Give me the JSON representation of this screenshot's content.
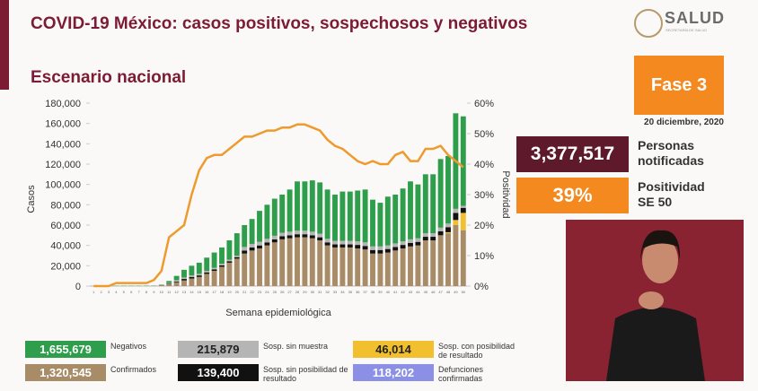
{
  "header": {
    "title": "COVID-19 México: casos positivos, sospechosos y negativos",
    "logo": "SALUD",
    "logo_sub": "SECRETARÍA DE SALUD"
  },
  "panel": {
    "phase": "Fase 3",
    "date": "20 diciembre, 2020",
    "notified": "3,377,517",
    "notified_label": "Personas notificadas",
    "positivity": "39%",
    "positivity_label": "Positividad SE 50"
  },
  "deaths": {
    "total": "118,202",
    "label": "Defunciones confirmadas",
    "color": "#8c8fe6"
  },
  "chart_data": {
    "type": "bar",
    "title": "Escenario nacional",
    "x_label": "Semana epidemiológica",
    "y_label": "Casos",
    "categories": [
      "1",
      "2",
      "3",
      "4",
      "5",
      "6",
      "7",
      "8",
      "9",
      "10",
      "11",
      "12",
      "13",
      "14",
      "15",
      "16",
      "17",
      "18",
      "19",
      "20",
      "21",
      "22",
      "23",
      "24",
      "25",
      "26",
      "27",
      "28",
      "29",
      "30",
      "31",
      "32",
      "33",
      "34",
      "35",
      "36",
      "37",
      "38",
      "39",
      "40",
      "41",
      "42",
      "43",
      "44",
      "45",
      "46",
      "47",
      "48",
      "49",
      "50"
    ],
    "ylim": [
      0,
      180000
    ],
    "yticks": [
      {
        "value": 0,
        "label": "0"
      },
      {
        "value": 20000,
        "label": "20,000"
      },
      {
        "value": 40000,
        "label": "40,000"
      },
      {
        "value": 60000,
        "label": "60,000"
      },
      {
        "value": 80000,
        "label": "80,000"
      },
      {
        "value": 100000,
        "label": "100,000"
      },
      {
        "value": 120000,
        "label": "120,000"
      },
      {
        "value": 140000,
        "label": "140,000"
      },
      {
        "value": 160000,
        "label": "160,000"
      },
      {
        "value": 180000,
        "label": "180,000"
      }
    ],
    "y2lim": [
      0,
      60
    ],
    "y2ticks": [
      {
        "value": 0,
        "label": "0%"
      },
      {
        "value": 10,
        "label": "10%"
      },
      {
        "value": 20,
        "label": "20%"
      },
      {
        "value": 30,
        "label": "30%"
      },
      {
        "value": 40,
        "label": "40%"
      },
      {
        "value": 50,
        "label": "50%"
      },
      {
        "value": 60,
        "label": "60%"
      }
    ],
    "series": [
      {
        "name": "Confirmados",
        "type": "bar",
        "color": "#a88c68",
        "total": "1,320,545",
        "values": [
          0,
          0,
          0,
          0,
          0,
          0,
          0,
          100,
          300,
          800,
          2000,
          3500,
          5500,
          7500,
          9000,
          12000,
          15000,
          19000,
          23000,
          27000,
          32000,
          35000,
          37000,
          40000,
          43000,
          46000,
          47000,
          48000,
          48000,
          47000,
          45000,
          40000,
          38000,
          38000,
          38000,
          37000,
          36000,
          32000,
          32000,
          33000,
          35000,
          37000,
          39000,
          40000,
          45000,
          45000,
          50000,
          52000,
          60000,
          55000
        ]
      },
      {
        "name": "Sosp. con posibilidad de resultado",
        "type": "bar",
        "color": "#f2c02e",
        "total": "46,014",
        "values": [
          0,
          0,
          0,
          0,
          0,
          0,
          0,
          0,
          0,
          0,
          0,
          0,
          0,
          0,
          0,
          0,
          0,
          0,
          0,
          0,
          0,
          0,
          0,
          0,
          0,
          0,
          0,
          0,
          0,
          0,
          0,
          0,
          0,
          0,
          0,
          0,
          0,
          0,
          0,
          0,
          0,
          0,
          0,
          0,
          0,
          0,
          0,
          1000,
          5000,
          17000
        ]
      },
      {
        "name": "Sosp. sin posibilidad de resultado",
        "type": "bar",
        "color": "#111111",
        "total": "139,400",
        "values": [
          0,
          0,
          0,
          0,
          0,
          0,
          0,
          0,
          0,
          200,
          500,
          800,
          1500,
          1500,
          1500,
          1500,
          1500,
          1500,
          1500,
          1500,
          3000,
          3000,
          3000,
          3000,
          3000,
          3000,
          3000,
          3000,
          3000,
          3000,
          3000,
          3000,
          3000,
          3000,
          3000,
          3500,
          3500,
          3500,
          3500,
          3500,
          3500,
          3500,
          3500,
          3500,
          3500,
          3500,
          4000,
          5000,
          7000,
          5000
        ]
      },
      {
        "name": "Sosp. sin muestra",
        "type": "bar",
        "color": "#b5b5b5",
        "total": "215,879",
        "values": [
          0,
          0,
          0,
          0,
          0,
          0,
          0,
          0,
          0,
          200,
          500,
          1500,
          1500,
          1500,
          1500,
          1500,
          1500,
          1500,
          1500,
          1500,
          3500,
          3500,
          3500,
          3500,
          3500,
          3500,
          3500,
          3500,
          3500,
          3500,
          3500,
          3500,
          3500,
          3500,
          3500,
          3500,
          3500,
          3500,
          3500,
          3500,
          3500,
          3500,
          3500,
          3500,
          3500,
          3500,
          3500,
          3500,
          4000,
          2000
        ]
      },
      {
        "name": "Negativos",
        "type": "bar",
        "color": "#2f9e4c",
        "total": "1,655,679",
        "values": [
          100,
          200,
          300,
          300,
          300,
          300,
          300,
          300,
          200,
          300,
          2000,
          4200,
          7500,
          9500,
          11000,
          13000,
          15000,
          16000,
          19000,
          22000,
          21500,
          24500,
          30500,
          33500,
          36500,
          37500,
          41500,
          48500,
          48500,
          50500,
          50500,
          48500,
          45500,
          48500,
          48500,
          50000,
          52000,
          46000,
          43000,
          48000,
          48000,
          52000,
          57000,
          53000,
          58000,
          58000,
          67500,
          66500,
          94000,
          88000
        ]
      },
      {
        "name": "Positividad",
        "type": "line",
        "axis": "y2",
        "color": "#ee9a2e",
        "values": [
          0,
          0,
          0,
          1,
          1,
          1,
          1,
          1,
          2,
          5,
          16,
          18,
          20,
          30,
          38,
          42,
          43,
          43,
          45,
          47,
          49,
          49,
          50,
          51,
          51,
          52,
          52,
          53,
          53,
          52,
          51,
          48,
          46,
          45,
          43,
          41,
          40,
          41,
          40,
          40,
          43,
          44,
          41,
          41,
          45,
          45,
          46,
          43,
          41,
          39
        ]
      }
    ]
  }
}
